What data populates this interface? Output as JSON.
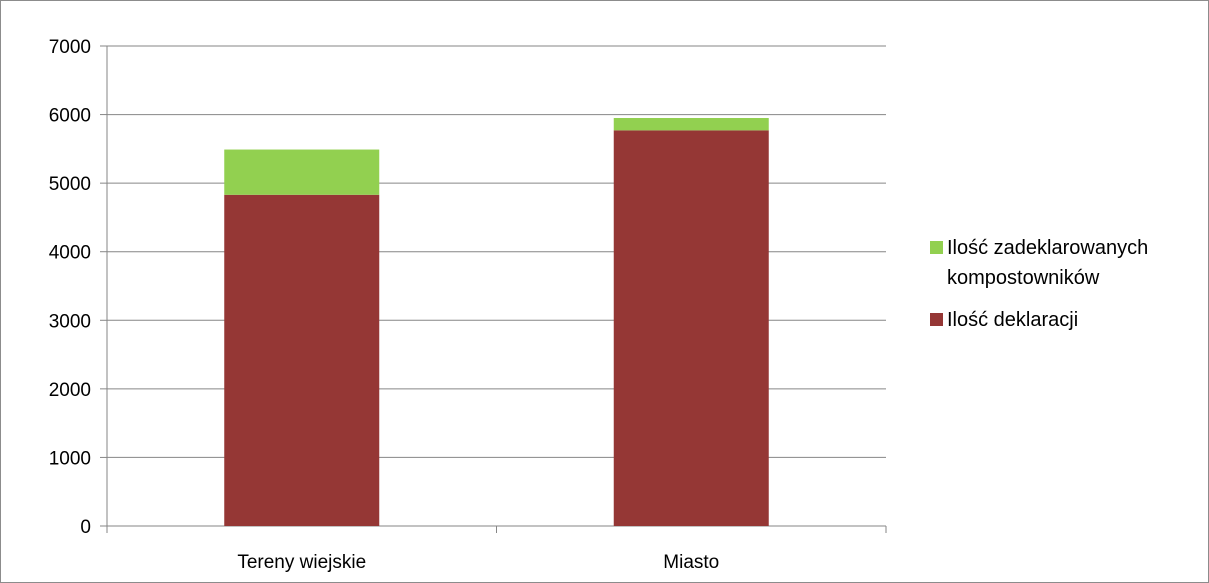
{
  "chart_data": {
    "type": "bar",
    "stacked": true,
    "categories": [
      "Tereny wiejskie",
      "Miasto"
    ],
    "series": [
      {
        "name": "Ilość deklaracji",
        "values": [
          4830,
          5770
        ],
        "color": "#953735"
      },
      {
        "name": "Ilość zadeklarowanych kompostowników",
        "values": [
          660,
          180
        ],
        "color": "#92d050"
      }
    ],
    "ylim": [
      0,
      7000
    ],
    "yticks": [
      0,
      1000,
      2000,
      3000,
      4000,
      5000,
      6000,
      7000
    ],
    "grid": true,
    "legend_position": "right",
    "legend_order": [
      1,
      0
    ],
    "title": "",
    "xlabel": "",
    "ylabel": ""
  }
}
